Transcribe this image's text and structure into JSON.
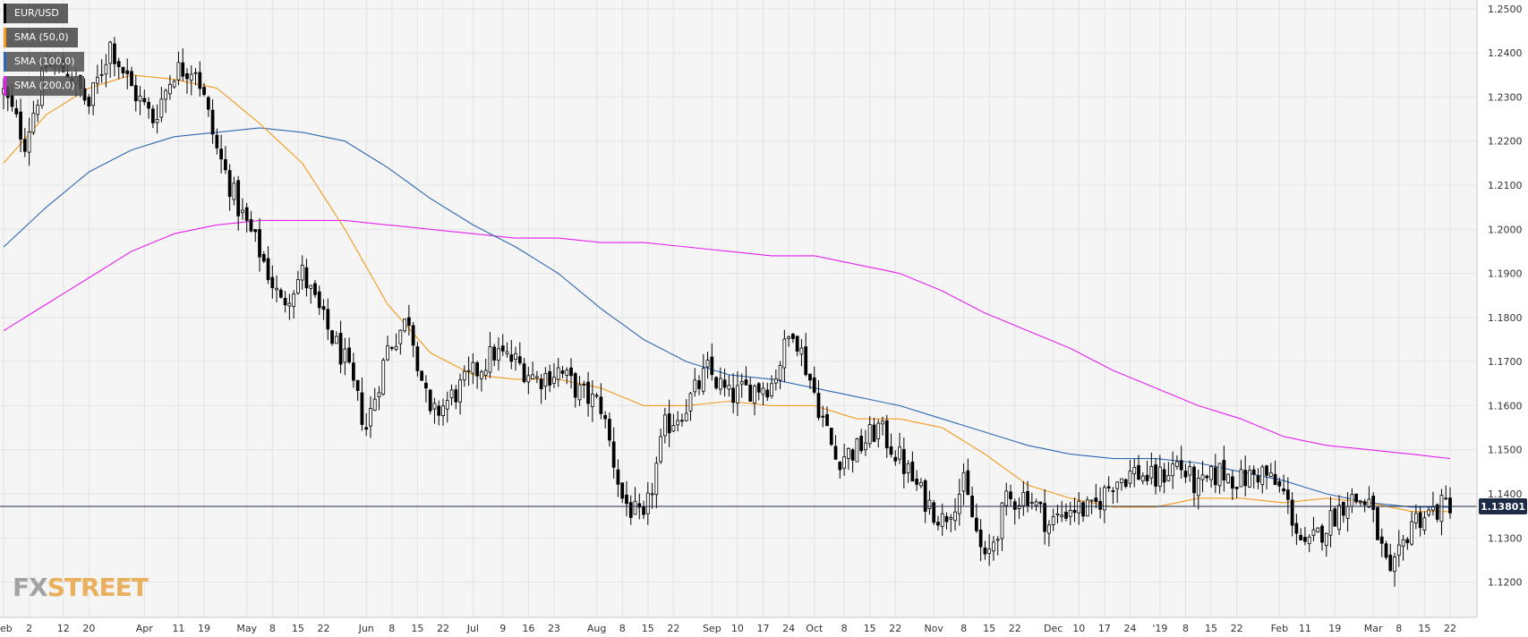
{
  "legend": [
    {
      "label": "EUR/USD",
      "color": "#000000"
    },
    {
      "label": "SMA (50,0)",
      "color": "#f39a1c"
    },
    {
      "label": "SMA (100,0)",
      "color": "#2e67b1"
    },
    {
      "label": "SMA (200,0)",
      "color": "#e51ff0"
    }
  ],
  "brand": {
    "fx": "FX",
    "street": "STREET"
  },
  "colors": {
    "background": "#f5f5f5",
    "grid": "#e3e3e3",
    "sma50": "#f39a1c",
    "sma100": "#2e67b1",
    "sma200": "#e51ff0",
    "current_line": "#1d2b47",
    "price_label_bg": "#1d2b47"
  },
  "chart_data": {
    "type": "candlestick",
    "title": "EUR/USD",
    "ylim": [
      1.112,
      1.252
    ],
    "y_ticks": [
      "1.2500",
      "1.2400",
      "1.2300",
      "1.2200",
      "1.2100",
      "1.2000",
      "1.1900",
      "1.1800",
      "1.1700",
      "1.1600",
      "1.1500",
      "1.1400",
      "1.1300",
      "1.1200"
    ],
    "current_price": "1.13801",
    "current_value": 1.138,
    "x_ticks": [
      {
        "label": "Feb",
        "i": 0
      },
      {
        "label": "2",
        "i": 6
      },
      {
        "label": "12",
        "i": 14
      },
      {
        "label": "20",
        "i": 20
      },
      {
        "label": "Apr",
        "i": 33
      },
      {
        "label": "11",
        "i": 41
      },
      {
        "label": "19",
        "i": 47
      },
      {
        "label": "May",
        "i": 57
      },
      {
        "label": "8",
        "i": 63
      },
      {
        "label": "15",
        "i": 69
      },
      {
        "label": "22",
        "i": 75
      },
      {
        "label": "Jun",
        "i": 85
      },
      {
        "label": "8",
        "i": 91
      },
      {
        "label": "15",
        "i": 97
      },
      {
        "label": "22",
        "i": 103
      },
      {
        "label": "Jul",
        "i": 110
      },
      {
        "label": "9",
        "i": 117
      },
      {
        "label": "16",
        "i": 123
      },
      {
        "label": "23",
        "i": 129
      },
      {
        "label": "Aug",
        "i": 139
      },
      {
        "label": "8",
        "i": 145
      },
      {
        "label": "15",
        "i": 151
      },
      {
        "label": "22",
        "i": 157
      },
      {
        "label": "Sep",
        "i": 166
      },
      {
        "label": "10",
        "i": 172
      },
      {
        "label": "17",
        "i": 178
      },
      {
        "label": "24",
        "i": 184
      },
      {
        "label": "Oct",
        "i": 190
      },
      {
        "label": "8",
        "i": 197
      },
      {
        "label": "15",
        "i": 203
      },
      {
        "label": "22",
        "i": 209
      },
      {
        "label": "Nov",
        "i": 218
      },
      {
        "label": "8",
        "i": 225
      },
      {
        "label": "15",
        "i": 231
      },
      {
        "label": "22",
        "i": 237
      },
      {
        "label": "Dec",
        "i": 246
      },
      {
        "label": "10",
        "i": 252
      },
      {
        "label": "17",
        "i": 258
      },
      {
        "label": "24",
        "i": 264
      },
      {
        "label": "'19",
        "i": 271
      },
      {
        "label": "8",
        "i": 277
      },
      {
        "label": "15",
        "i": 283
      },
      {
        "label": "22",
        "i": 289
      },
      {
        "label": "Feb",
        "i": 299
      },
      {
        "label": "11",
        "i": 305
      },
      {
        "label": "19",
        "i": 312
      },
      {
        "label": "Mar",
        "i": 321
      },
      {
        "label": "8",
        "i": 327
      },
      {
        "label": "15",
        "i": 333
      },
      {
        "label": "22",
        "i": 339
      }
    ],
    "close_anchors": [
      [
        0,
        1.231
      ],
      [
        5,
        1.22
      ],
      [
        10,
        1.237
      ],
      [
        15,
        1.236
      ],
      [
        20,
        1.228
      ],
      [
        25,
        1.242
      ],
      [
        30,
        1.232
      ],
      [
        35,
        1.225
      ],
      [
        40,
        1.236
      ],
      [
        45,
        1.237
      ],
      [
        50,
        1.218
      ],
      [
        55,
        1.205
      ],
      [
        60,
        1.195
      ],
      [
        65,
        1.183
      ],
      [
        70,
        1.19
      ],
      [
        75,
        1.179
      ],
      [
        80,
        1.17
      ],
      [
        85,
        1.155
      ],
      [
        90,
        1.173
      ],
      [
        95,
        1.18
      ],
      [
        100,
        1.157
      ],
      [
        105,
        1.162
      ],
      [
        110,
        1.167
      ],
      [
        115,
        1.172
      ],
      [
        120,
        1.17
      ],
      [
        125,
        1.166
      ],
      [
        130,
        1.168
      ],
      [
        135,
        1.163
      ],
      [
        140,
        1.16
      ],
      [
        145,
        1.139
      ],
      [
        150,
        1.133
      ],
      [
        155,
        1.155
      ],
      [
        160,
        1.16
      ],
      [
        165,
        1.168
      ],
      [
        170,
        1.162
      ],
      [
        175,
        1.164
      ],
      [
        180,
        1.165
      ],
      [
        185,
        1.178
      ],
      [
        190,
        1.163
      ],
      [
        195,
        1.148
      ],
      [
        200,
        1.15
      ],
      [
        205,
        1.155
      ],
      [
        210,
        1.148
      ],
      [
        215,
        1.14
      ],
      [
        220,
        1.134
      ],
      [
        225,
        1.142
      ],
      [
        230,
        1.124
      ],
      [
        235,
        1.138
      ],
      [
        240,
        1.14
      ],
      [
        245,
        1.133
      ],
      [
        250,
        1.137
      ],
      [
        255,
        1.136
      ],
      [
        260,
        1.143
      ],
      [
        265,
        1.145
      ],
      [
        270,
        1.143
      ],
      [
        275,
        1.147
      ],
      [
        280,
        1.141
      ],
      [
        285,
        1.145
      ],
      [
        290,
        1.143
      ],
      [
        295,
        1.145
      ],
      [
        300,
        1.14
      ],
      [
        305,
        1.127
      ],
      [
        310,
        1.133
      ],
      [
        315,
        1.139
      ],
      [
        320,
        1.138
      ],
      [
        325,
        1.12
      ],
      [
        330,
        1.134
      ],
      [
        335,
        1.136
      ],
      [
        339,
        1.138
      ]
    ],
    "sma50_anchors": [
      [
        0,
        1.215
      ],
      [
        10,
        1.226
      ],
      [
        20,
        1.232
      ],
      [
        30,
        1.235
      ],
      [
        40,
        1.234
      ],
      [
        50,
        1.232
      ],
      [
        60,
        1.224
      ],
      [
        70,
        1.215
      ],
      [
        80,
        1.2
      ],
      [
        90,
        1.183
      ],
      [
        100,
        1.172
      ],
      [
        110,
        1.167
      ],
      [
        120,
        1.166
      ],
      [
        130,
        1.166
      ],
      [
        140,
        1.164
      ],
      [
        150,
        1.16
      ],
      [
        160,
        1.16
      ],
      [
        170,
        1.161
      ],
      [
        180,
        1.16
      ],
      [
        190,
        1.16
      ],
      [
        200,
        1.157
      ],
      [
        210,
        1.157
      ],
      [
        220,
        1.155
      ],
      [
        230,
        1.149
      ],
      [
        240,
        1.142
      ],
      [
        250,
        1.139
      ],
      [
        260,
        1.137
      ],
      [
        270,
        1.137
      ],
      [
        280,
        1.139
      ],
      [
        290,
        1.139
      ],
      [
        300,
        1.138
      ],
      [
        310,
        1.139
      ],
      [
        320,
        1.138
      ],
      [
        330,
        1.136
      ],
      [
        339,
        1.136
      ]
    ],
    "sma100_anchors": [
      [
        0,
        1.196
      ],
      [
        10,
        1.205
      ],
      [
        20,
        1.213
      ],
      [
        30,
        1.218
      ],
      [
        40,
        1.221
      ],
      [
        50,
        1.222
      ],
      [
        60,
        1.223
      ],
      [
        70,
        1.222
      ],
      [
        80,
        1.22
      ],
      [
        90,
        1.214
      ],
      [
        100,
        1.207
      ],
      [
        110,
        1.201
      ],
      [
        120,
        1.196
      ],
      [
        130,
        1.19
      ],
      [
        140,
        1.182
      ],
      [
        150,
        1.175
      ],
      [
        160,
        1.17
      ],
      [
        170,
        1.167
      ],
      [
        180,
        1.166
      ],
      [
        190,
        1.164
      ],
      [
        200,
        1.162
      ],
      [
        210,
        1.16
      ],
      [
        220,
        1.157
      ],
      [
        230,
        1.154
      ],
      [
        240,
        1.151
      ],
      [
        250,
        1.149
      ],
      [
        260,
        1.148
      ],
      [
        270,
        1.148
      ],
      [
        280,
        1.147
      ],
      [
        290,
        1.145
      ],
      [
        300,
        1.143
      ],
      [
        310,
        1.14
      ],
      [
        320,
        1.138
      ],
      [
        330,
        1.137
      ],
      [
        339,
        1.137
      ]
    ],
    "sma200_anchors": [
      [
        0,
        1.177
      ],
      [
        10,
        1.183
      ],
      [
        20,
        1.189
      ],
      [
        30,
        1.195
      ],
      [
        40,
        1.199
      ],
      [
        50,
        1.201
      ],
      [
        60,
        1.202
      ],
      [
        70,
        1.202
      ],
      [
        80,
        1.202
      ],
      [
        90,
        1.201
      ],
      [
        100,
        1.2
      ],
      [
        110,
        1.199
      ],
      [
        120,
        1.198
      ],
      [
        130,
        1.198
      ],
      [
        140,
        1.197
      ],
      [
        150,
        1.197
      ],
      [
        160,
        1.196
      ],
      [
        170,
        1.195
      ],
      [
        180,
        1.194
      ],
      [
        190,
        1.194
      ],
      [
        200,
        1.192
      ],
      [
        210,
        1.19
      ],
      [
        220,
        1.186
      ],
      [
        230,
        1.181
      ],
      [
        240,
        1.177
      ],
      [
        250,
        1.173
      ],
      [
        260,
        1.168
      ],
      [
        270,
        1.164
      ],
      [
        280,
        1.16
      ],
      [
        290,
        1.157
      ],
      [
        300,
        1.153
      ],
      [
        310,
        1.151
      ],
      [
        320,
        1.15
      ],
      [
        330,
        1.149
      ],
      [
        339,
        1.148
      ]
    ],
    "n_bars": 340,
    "grid": true
  }
}
